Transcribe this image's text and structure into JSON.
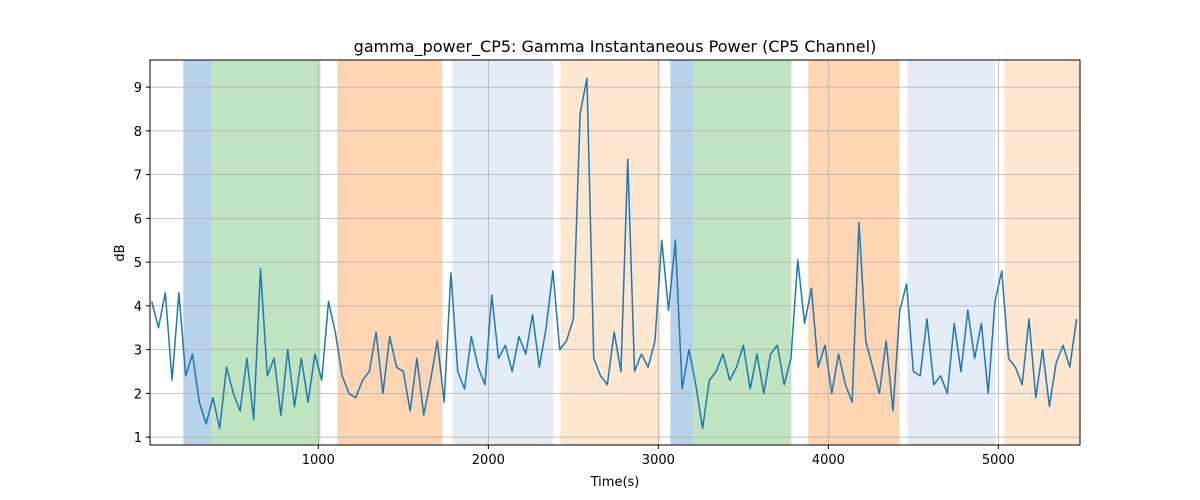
{
  "chart_data": {
    "type": "line",
    "title": "gamma_power_CP5: Gamma Instantaneous Power (CP5 Channel)",
    "x_label": "Time(s)",
    "y_label": "dB",
    "xlim": [
      10,
      5480
    ],
    "ylim": [
      0.82,
      9.62
    ],
    "xticks": [
      1000,
      2000,
      3000,
      4000,
      5000
    ],
    "yticks": [
      1,
      2,
      3,
      4,
      5,
      6,
      7,
      8,
      9
    ],
    "grid": true,
    "color": "#1f77b4",
    "spans": [
      {
        "start": 206,
        "end": 371,
        "color": "#b8d3e9"
      },
      {
        "start": 371,
        "end": 1012,
        "color": "#c0e4c0"
      },
      {
        "start": 1112,
        "end": 1729,
        "color": "#fed5b3"
      },
      {
        "start": 1788,
        "end": 2382,
        "color": "#e4ecf6"
      },
      {
        "start": 2424,
        "end": 3012,
        "color": "#fee7d1"
      },
      {
        "start": 3071,
        "end": 3206,
        "color": "#b8d3e9"
      },
      {
        "start": 3206,
        "end": 3782,
        "color": "#c0e4c0"
      },
      {
        "start": 3882,
        "end": 4418,
        "color": "#fed5b3"
      },
      {
        "start": 4465,
        "end": 4982,
        "color": "#e4ecf6"
      },
      {
        "start": 5035,
        "end": 5480,
        "color": "#fee7d1"
      }
    ],
    "x": [
      20,
      60,
      100,
      140,
      180,
      220,
      260,
      300,
      340,
      380,
      420,
      460,
      500,
      540,
      580,
      620,
      660,
      700,
      740,
      780,
      820,
      860,
      900,
      940,
      980,
      1020,
      1060,
      1100,
      1140,
      1180,
      1220,
      1260,
      1300,
      1340,
      1380,
      1420,
      1460,
      1500,
      1540,
      1580,
      1620,
      1660,
      1700,
      1740,
      1780,
      1820,
      1860,
      1900,
      1940,
      1980,
      2020,
      2060,
      2100,
      2140,
      2180,
      2220,
      2260,
      2300,
      2340,
      2380,
      2420,
      2460,
      2500,
      2540,
      2580,
      2620,
      2660,
      2700,
      2740,
      2780,
      2820,
      2860,
      2900,
      2940,
      2980,
      3020,
      3060,
      3100,
      3140,
      3180,
      3220,
      3260,
      3300,
      3340,
      3380,
      3420,
      3460,
      3500,
      3540,
      3580,
      3620,
      3660,
      3700,
      3740,
      3780,
      3820,
      3860,
      3900,
      3940,
      3980,
      4020,
      4060,
      4100,
      4140,
      4180,
      4220,
      4260,
      4300,
      4340,
      4380,
      4420,
      4460,
      4500,
      4540,
      4580,
      4620,
      4660,
      4700,
      4740,
      4780,
      4820,
      4860,
      4900,
      4940,
      4980,
      5020,
      5060,
      5100,
      5140,
      5180,
      5220,
      5260,
      5300,
      5340,
      5380,
      5420,
      5460
    ],
    "values": [
      4.1,
      3.5,
      4.3,
      2.3,
      4.3,
      2.4,
      2.9,
      1.8,
      1.3,
      1.9,
      1.2,
      2.6,
      2.0,
      1.6,
      2.8,
      1.4,
      4.85,
      2.4,
      2.8,
      1.5,
      3.0,
      1.7,
      2.8,
      1.8,
      2.9,
      2.3,
      4.1,
      3.4,
      2.4,
      2.0,
      1.9,
      2.3,
      2.5,
      3.4,
      2.0,
      3.3,
      2.6,
      2.5,
      1.6,
      2.8,
      1.5,
      2.3,
      3.2,
      1.8,
      4.75,
      2.5,
      2.1,
      3.3,
      2.6,
      2.2,
      4.25,
      2.8,
      3.1,
      2.5,
      3.3,
      2.9,
      3.8,
      2.6,
      3.5,
      4.8,
      3.0,
      3.2,
      3.7,
      8.4,
      9.2,
      2.8,
      2.4,
      2.2,
      3.4,
      2.5,
      7.35,
      2.5,
      2.9,
      2.6,
      3.2,
      5.5,
      3.9,
      5.5,
      2.1,
      3.0,
      2.2,
      1.2,
      2.3,
      2.5,
      2.9,
      2.3,
      2.6,
      3.1,
      2.1,
      2.9,
      2.0,
      2.9,
      3.1,
      2.2,
      2.8,
      5.05,
      3.6,
      4.4,
      2.6,
      3.1,
      2.0,
      2.9,
      2.2,
      1.8,
      5.9,
      3.2,
      2.6,
      2.0,
      3.2,
      1.6,
      3.9,
      4.5,
      2.5,
      2.4,
      3.7,
      2.2,
      2.4,
      2.0,
      3.6,
      2.5,
      3.9,
      2.8,
      3.6,
      2.0,
      4.1,
      4.8,
      2.8,
      2.6,
      2.2,
      3.7,
      1.9,
      3.0,
      1.7,
      2.7,
      3.1,
      2.6,
      3.7
    ]
  }
}
